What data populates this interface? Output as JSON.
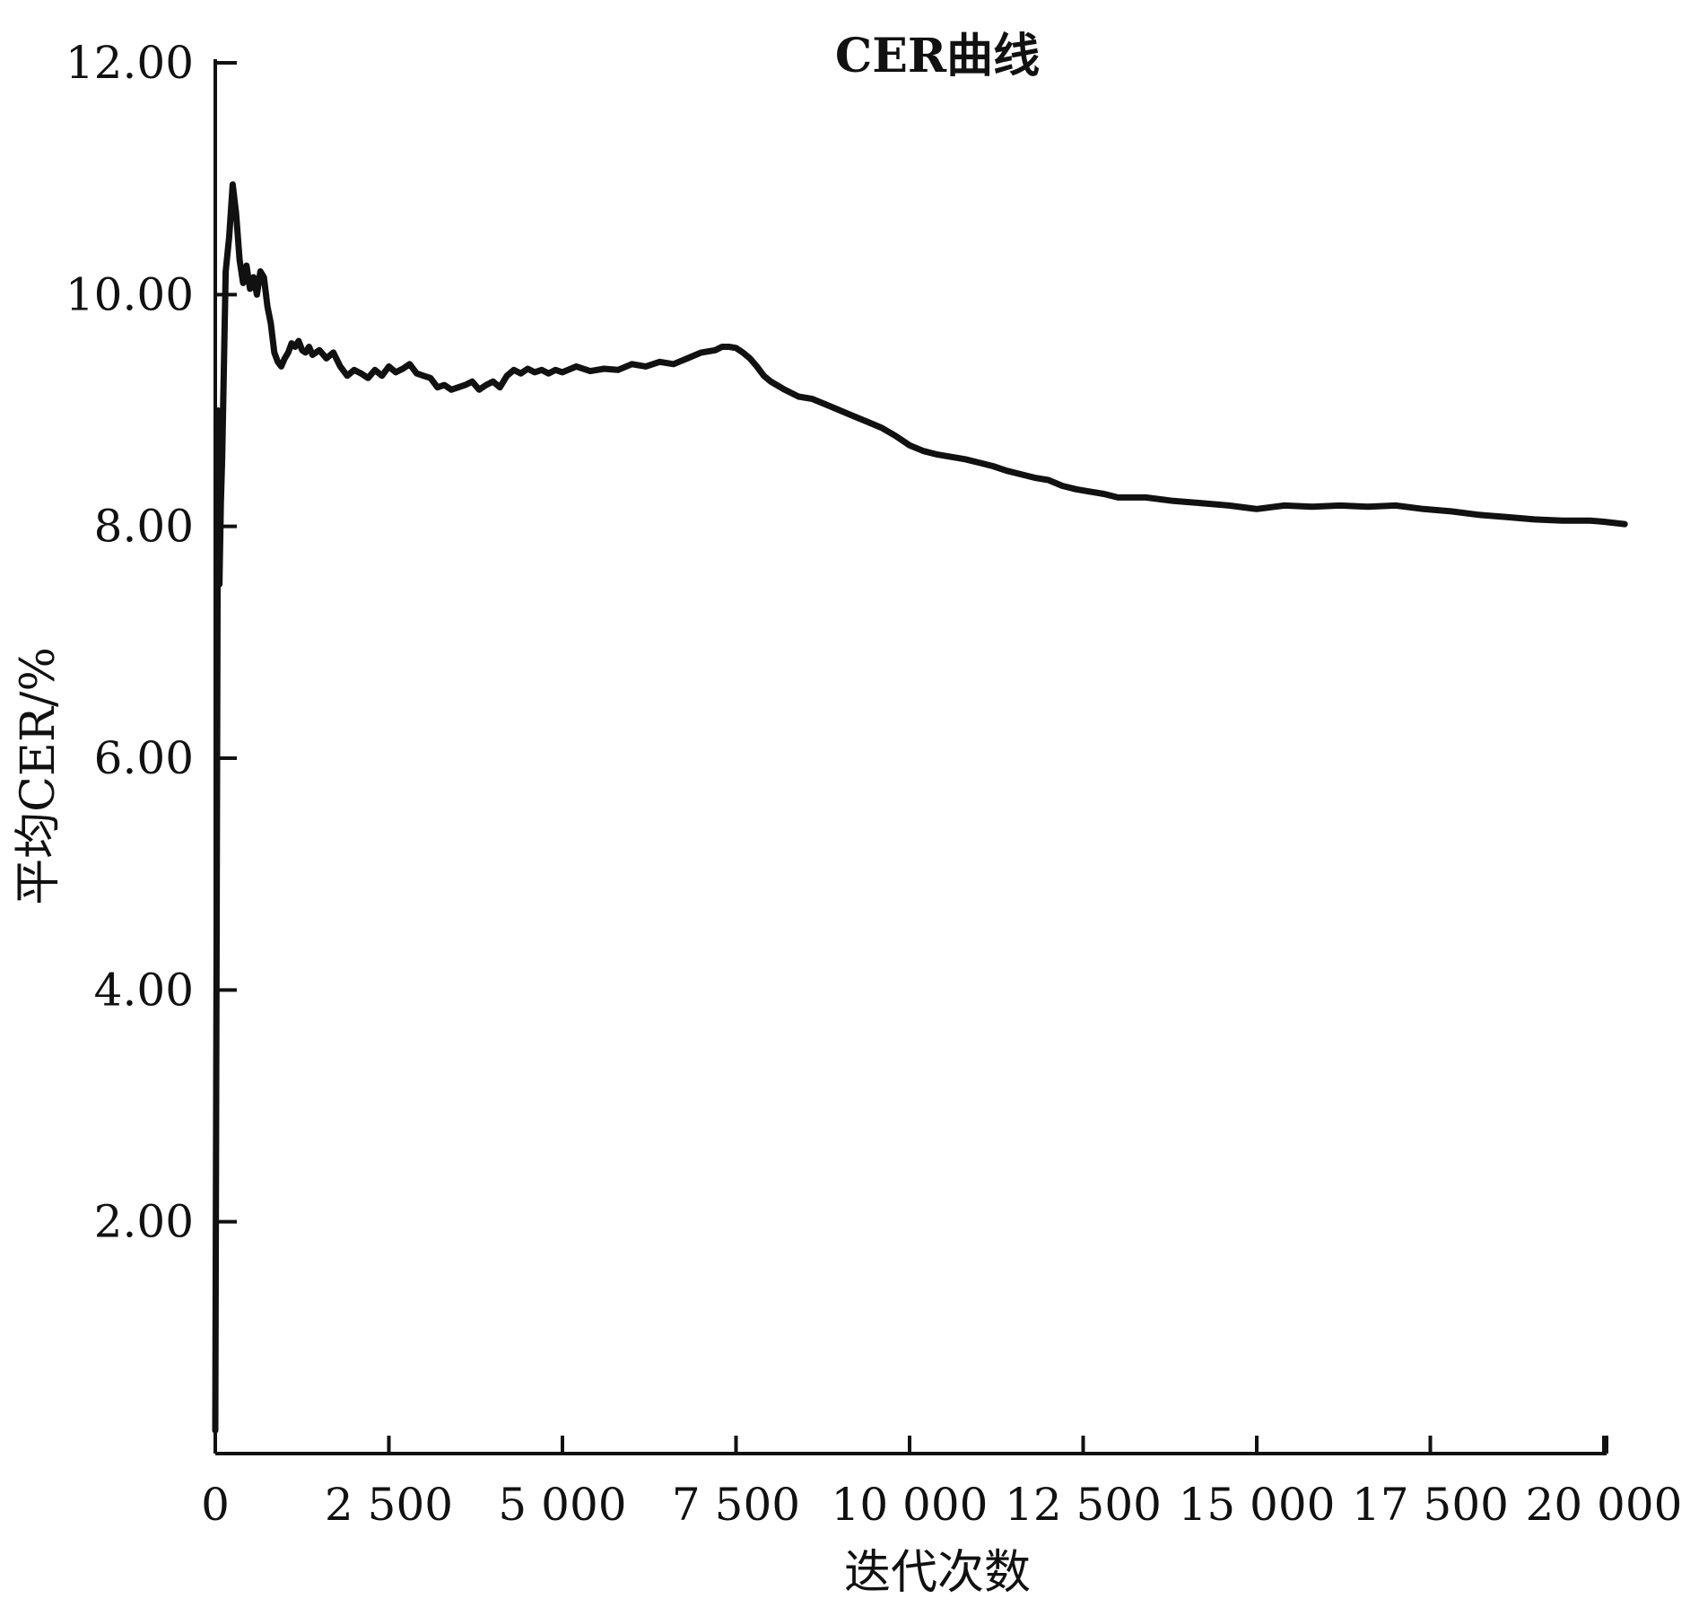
{
  "chart_data": {
    "type": "line",
    "title": "CER曲线",
    "xlabel": "迭代次数",
    "ylabel": "平均CER/%",
    "xlim": [
      0,
      20000
    ],
    "ylim": [
      0,
      12
    ],
    "x_ticks": [
      0,
      2500,
      5000,
      7500,
      10000,
      12500,
      15000,
      17500,
      20000
    ],
    "x_tick_labels": [
      "0",
      "2 500",
      "5 000",
      "7 500",
      "10 000",
      "12 500",
      "15 000",
      "17 500",
      "20 000"
    ],
    "y_ticks": [
      2,
      4,
      6,
      8,
      10,
      12
    ],
    "y_tick_labels": [
      "2.00",
      "4.00",
      "6.00",
      "8.00",
      "10.00",
      "12.00"
    ],
    "grid": false,
    "line_color": "#111111",
    "series": [
      {
        "x": [
          0,
          20,
          40,
          60,
          80,
          100,
          150,
          200,
          250,
          300,
          350,
          400,
          450,
          500,
          550,
          600,
          650,
          700,
          750,
          800,
          850,
          900,
          950,
          1000,
          1050,
          1100,
          1150,
          1200,
          1250,
          1300,
          1350,
          1400,
          1450,
          1500,
          1600,
          1700,
          1800,
          1900,
          2000,
          2100,
          2200,
          2300,
          2400,
          2500,
          2600,
          2700,
          2800,
          2900,
          3000,
          3100,
          3200,
          3300,
          3400,
          3500,
          3600,
          3700,
          3800,
          3900,
          4000,
          4100,
          4200,
          4300,
          4400,
          4500,
          4600,
          4700,
          4800,
          4900,
          5000,
          5200,
          5400,
          5600,
          5800,
          6000,
          6200,
          6400,
          6600,
          6800,
          7000,
          7200,
          7300,
          7400,
          7500,
          7600,
          7700,
          7800,
          7900,
          8000,
          8200,
          8400,
          8600,
          8800,
          9000,
          9200,
          9400,
          9600,
          9800,
          10000,
          10200,
          10400,
          10600,
          10800,
          11000,
          11200,
          11400,
          11600,
          11800,
          12000,
          12200,
          12400,
          12600,
          12800,
          13000,
          13400,
          13800,
          14200,
          14600,
          15000,
          15400,
          15800,
          16200,
          16600,
          17000,
          17400,
          17800,
          18200,
          18600,
          19000,
          19400,
          19800,
          20000,
          20300
        ],
        "y": [
          0.2,
          4.5,
          9.0,
          7.5,
          8.2,
          8.6,
          10.2,
          10.5,
          10.95,
          10.7,
          10.3,
          10.1,
          10.25,
          10.05,
          10.15,
          10.0,
          10.2,
          10.15,
          9.9,
          9.75,
          9.5,
          9.42,
          9.38,
          9.45,
          9.5,
          9.58,
          9.55,
          9.6,
          9.52,
          9.5,
          9.55,
          9.48,
          9.5,
          9.52,
          9.45,
          9.5,
          9.38,
          9.3,
          9.35,
          9.32,
          9.28,
          9.35,
          9.3,
          9.38,
          9.33,
          9.36,
          9.4,
          9.32,
          9.3,
          9.28,
          9.2,
          9.22,
          9.18,
          9.2,
          9.22,
          9.25,
          9.18,
          9.22,
          9.25,
          9.2,
          9.3,
          9.35,
          9.32,
          9.36,
          9.33,
          9.35,
          9.32,
          9.35,
          9.33,
          9.38,
          9.34,
          9.36,
          9.35,
          9.4,
          9.38,
          9.42,
          9.4,
          9.45,
          9.5,
          9.52,
          9.55,
          9.55,
          9.54,
          9.5,
          9.45,
          9.38,
          9.3,
          9.25,
          9.18,
          9.12,
          9.1,
          9.05,
          9.0,
          8.95,
          8.9,
          8.85,
          8.78,
          8.7,
          8.65,
          8.62,
          8.6,
          8.58,
          8.55,
          8.52,
          8.48,
          8.45,
          8.42,
          8.4,
          8.35,
          8.32,
          8.3,
          8.28,
          8.25,
          8.25,
          8.22,
          8.2,
          8.18,
          8.15,
          8.18,
          8.17,
          8.18,
          8.17,
          8.18,
          8.15,
          8.13,
          8.1,
          8.08,
          8.06,
          8.05,
          8.05,
          8.04,
          8.02
        ]
      }
    ]
  }
}
